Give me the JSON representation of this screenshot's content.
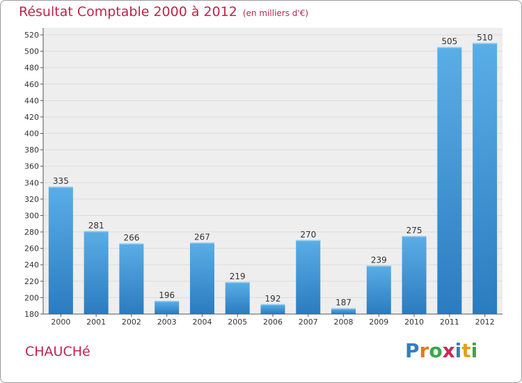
{
  "header": {
    "title": "Résultat Comptable 2000 à 2012",
    "unit": "(en milliers d'€)"
  },
  "footer": {
    "town": "CHAUCHé",
    "logo_letters": [
      "P",
      "r",
      "o",
      "x",
      "i",
      "t",
      "i"
    ],
    "logo_colors": [
      "#2f7fc1",
      "#e07b1a",
      "#3aa64a",
      "#d0245a",
      "#2f7fc1",
      "#e0a21a",
      "#3aa64a"
    ]
  },
  "colors": {
    "title": "#c0234a",
    "bar_top": "#5aaee6",
    "bar_bottom": "#2a7cbf",
    "grid": "#dcdcdc",
    "plot_bg": "#eeeeee"
  },
  "chart_data": {
    "type": "bar",
    "title": "Résultat Comptable 2000 à 2012",
    "subtitle": "(en milliers d'€)",
    "xlabel": "",
    "ylabel": "",
    "categories": [
      "2000",
      "2001",
      "2002",
      "2003",
      "2004",
      "2005",
      "2006",
      "2007",
      "2008",
      "2009",
      "2010",
      "2011",
      "2012"
    ],
    "values": [
      335,
      281,
      266,
      196,
      267,
      219,
      192,
      270,
      187,
      239,
      275,
      505,
      510
    ],
    "ylim": [
      180,
      520
    ],
    "yticks": [
      "180",
      "200",
      "220",
      "240",
      "260",
      "280",
      "300",
      "320",
      "340",
      "360",
      "380",
      "400",
      "420",
      "440",
      "460",
      "480",
      "500",
      "520"
    ],
    "grid": true,
    "legend": "none"
  }
}
